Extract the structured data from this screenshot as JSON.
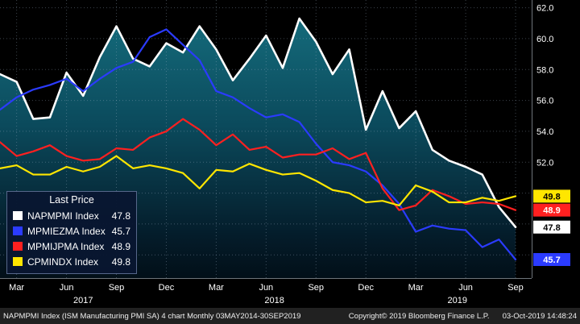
{
  "chart_data": {
    "type": "line",
    "title": "",
    "x_unit": "month",
    "months": [
      "2017-02",
      "2017-03",
      "2017-04",
      "2017-05",
      "2017-06",
      "2017-07",
      "2017-08",
      "2017-09",
      "2017-10",
      "2017-11",
      "2017-12",
      "2018-01",
      "2018-02",
      "2018-03",
      "2018-04",
      "2018-05",
      "2018-06",
      "2018-07",
      "2018-08",
      "2018-09",
      "2018-10",
      "2018-11",
      "2018-12",
      "2019-01",
      "2019-02",
      "2019-03",
      "2019-04",
      "2019-05",
      "2019-06",
      "2019-07",
      "2019-08",
      "2019-09"
    ],
    "ylim": [
      44.5,
      62.5
    ],
    "y_ticks": [
      62.0,
      60.0,
      58.0,
      56.0,
      54.0,
      52.0
    ],
    "grid_values": [
      46,
      48,
      50,
      52,
      54,
      56,
      58,
      60,
      62
    ],
    "x_ticks": [
      {
        "label": "Mar",
        "i": 1
      },
      {
        "label": "Jun",
        "i": 4
      },
      {
        "label": "Sep",
        "i": 7
      },
      {
        "label": "Dec",
        "i": 10
      },
      {
        "label": "Mar",
        "i": 13
      },
      {
        "label": "Jun",
        "i": 16
      },
      {
        "label": "Sep",
        "i": 19
      },
      {
        "label": "Dec",
        "i": 22
      },
      {
        "label": "Mar",
        "i": 25
      },
      {
        "label": "Jun",
        "i": 28
      },
      {
        "label": "Sep",
        "i": 31
      }
    ],
    "year_ticks": [
      {
        "label": "2017",
        "i": 5
      },
      {
        "label": "2018",
        "i": 16.5
      },
      {
        "label": "2019",
        "i": 27.5
      }
    ],
    "series": [
      {
        "name": "NAPMPMI Index",
        "last": 47.8,
        "color": "#ffffff",
        "fill": true,
        "values": [
          57.7,
          57.2,
          54.8,
          54.9,
          57.8,
          56.3,
          58.8,
          60.8,
          58.7,
          58.2,
          59.7,
          59.1,
          60.8,
          59.3,
          57.3,
          58.7,
          60.2,
          58.1,
          61.3,
          59.8,
          57.7,
          59.3,
          54.1,
          56.6,
          54.2,
          55.3,
          52.8,
          52.1,
          51.7,
          51.2,
          49.1,
          47.8
        ]
      },
      {
        "name": "MPMIEZMA Index",
        "last": 45.7,
        "color": "#2b3bff",
        "fill": false,
        "values": [
          55.4,
          56.2,
          56.7,
          57.0,
          57.4,
          56.6,
          57.4,
          58.1,
          58.5,
          60.1,
          60.6,
          59.6,
          58.6,
          56.6,
          56.2,
          55.5,
          54.9,
          55.1,
          54.6,
          53.2,
          52.0,
          51.8,
          51.4,
          50.5,
          49.3,
          47.5,
          47.9,
          47.7,
          47.6,
          46.5,
          47.0,
          45.7
        ]
      },
      {
        "name": "MPMIJPMA Index",
        "last": 48.9,
        "color": "#ff2020",
        "fill": false,
        "values": [
          53.3,
          52.4,
          52.7,
          53.1,
          52.4,
          52.1,
          52.2,
          52.9,
          52.8,
          53.6,
          54.0,
          54.8,
          54.1,
          53.1,
          53.8,
          52.8,
          53.0,
          52.3,
          52.5,
          52.5,
          52.9,
          52.2,
          52.6,
          50.3,
          48.9,
          49.2,
          50.2,
          49.8,
          49.3,
          49.4,
          49.3,
          48.9
        ]
      },
      {
        "name": "CPMINDX Index",
        "last": 49.8,
        "color": "#ffe600",
        "fill": false,
        "values": [
          51.6,
          51.8,
          51.2,
          51.2,
          51.7,
          51.4,
          51.7,
          52.4,
          51.6,
          51.8,
          51.6,
          51.3,
          50.3,
          51.5,
          51.4,
          51.9,
          51.5,
          51.2,
          51.3,
          50.8,
          50.2,
          50.0,
          49.4,
          49.5,
          49.2,
          50.5,
          50.1,
          49.4,
          49.4,
          49.7,
          49.5,
          49.8
        ]
      }
    ],
    "price_labels": [
      {
        "value": 49.8,
        "bg": "#ffe600",
        "fg": "#000000"
      },
      {
        "value": 48.9,
        "bg": "#ff2020",
        "fg": "#ffffff"
      },
      {
        "value": 47.8,
        "bg": "#ffffff",
        "fg": "#000000"
      },
      {
        "value": 45.7,
        "bg": "#2b3bff",
        "fg": "#ffffff"
      }
    ],
    "colors": {
      "plot_bg": "#000000",
      "grid": "#9db1c4",
      "area_stops": [
        {
          "offset": "0%",
          "color": "#167080"
        },
        {
          "offset": "45%",
          "color": "#0b4a5c"
        },
        {
          "offset": "85%",
          "color": "#041c2a"
        },
        {
          "offset": "100%",
          "color": "#020f18"
        }
      ]
    },
    "legend_position": "bottom-left",
    "grid": "dotted"
  },
  "legend": {
    "title": "Last Price",
    "items": [
      {
        "label": "NAPMPMI Index",
        "value": "47.8",
        "color": "#ffffff"
      },
      {
        "label": "MPMIEZMA Index",
        "value": "45.7",
        "color": "#2b3bff"
      },
      {
        "label": "MPMIJPMA Index",
        "value": "48.9",
        "color": "#ff2020"
      },
      {
        "label": "CPMINDX Index",
        "value": "49.8",
        "color": "#ffe600"
      }
    ]
  },
  "footer": {
    "left": "NAPMPMI Index (ISM Manufacturing PMI SA) 4 chart Monthly 03MAY2014-30SEP2019",
    "copyright": "Copyright© 2019 Bloomberg Finance L.P.",
    "timestamp": "03-Oct-2019 14:48:24"
  }
}
